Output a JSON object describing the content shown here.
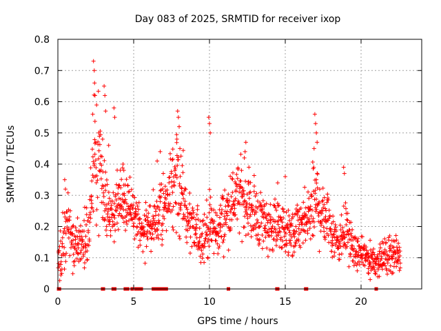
{
  "chart_data": {
    "type": "scatter",
    "title": "Day 083 of 2025, SRMTID for receiver ixop",
    "xlabel": "GPS time / hours",
    "ylabel": "SRMTID / TECUs",
    "xlim": [
      0,
      24
    ],
    "ylim": [
      0,
      0.8
    ],
    "grid": true,
    "marker": "+",
    "color": "#ff0000",
    "x_ticks": [
      0,
      5,
      10,
      15,
      20
    ],
    "x_tick_labels": [
      "0",
      "5",
      "10",
      "15",
      "20"
    ],
    "y_ticks": [
      0,
      0.1,
      0.2,
      0.3,
      0.4,
      0.5,
      0.6,
      0.7,
      0.8
    ],
    "y_tick_labels": [
      "0",
      "0.1",
      "0.2",
      "0.3",
      "0.4",
      "0.5",
      "0.6",
      "0.7",
      "0.8"
    ],
    "envelope": {
      "x": [
        0.0,
        0.3,
        0.6,
        1.0,
        1.5,
        2.0,
        2.3,
        2.5,
        2.8,
        3.1,
        3.5,
        4.0,
        4.5,
        5.0,
        5.5,
        6.0,
        6.5,
        7.0,
        7.5,
        8.0,
        8.5,
        9.0,
        9.5,
        10.0,
        10.5,
        11.0,
        11.5,
        12.0,
        12.5,
        13.0,
        13.5,
        14.0,
        14.5,
        15.0,
        15.5,
        16.0,
        16.5,
        17.0,
        17.5,
        18.0,
        18.5,
        19.0,
        19.5,
        20.0,
        20.5,
        21.0,
        21.5,
        22.0,
        22.6
      ],
      "y_mean": [
        0.08,
        0.12,
        0.22,
        0.13,
        0.15,
        0.18,
        0.35,
        0.45,
        0.38,
        0.28,
        0.22,
        0.26,
        0.28,
        0.24,
        0.18,
        0.2,
        0.22,
        0.27,
        0.32,
        0.35,
        0.22,
        0.18,
        0.17,
        0.2,
        0.18,
        0.23,
        0.28,
        0.3,
        0.27,
        0.24,
        0.22,
        0.2,
        0.21,
        0.18,
        0.17,
        0.2,
        0.22,
        0.28,
        0.25,
        0.2,
        0.15,
        0.2,
        0.12,
        0.11,
        0.1,
        0.09,
        0.1,
        0.12,
        0.1
      ],
      "y_spread": [
        0.04,
        0.06,
        0.08,
        0.05,
        0.05,
        0.06,
        0.12,
        0.13,
        0.11,
        0.07,
        0.06,
        0.06,
        0.06,
        0.05,
        0.05,
        0.05,
        0.06,
        0.07,
        0.08,
        0.1,
        0.06,
        0.05,
        0.05,
        0.06,
        0.05,
        0.06,
        0.06,
        0.07,
        0.06,
        0.06,
        0.06,
        0.05,
        0.05,
        0.05,
        0.05,
        0.05,
        0.06,
        0.09,
        0.07,
        0.06,
        0.04,
        0.06,
        0.03,
        0.03,
        0.03,
        0.03,
        0.03,
        0.04,
        0.03
      ]
    },
    "peaks": [
      {
        "x": 2.35,
        "y": 0.73
      },
      {
        "x": 2.4,
        "y": 0.7
      },
      {
        "x": 2.42,
        "y": 0.66
      },
      {
        "x": 2.45,
        "y": 0.62
      },
      {
        "x": 3.05,
        "y": 0.65
      },
      {
        "x": 3.1,
        "y": 0.62
      },
      {
        "x": 3.15,
        "y": 0.57
      },
      {
        "x": 3.7,
        "y": 0.58
      },
      {
        "x": 3.75,
        "y": 0.55
      },
      {
        "x": 2.3,
        "y": 0.56
      },
      {
        "x": 2.7,
        "y": 0.5
      },
      {
        "x": 2.95,
        "y": 0.48
      },
      {
        "x": 4.3,
        "y": 0.4
      },
      {
        "x": 4.35,
        "y": 0.38
      },
      {
        "x": 7.9,
        "y": 0.57
      },
      {
        "x": 7.95,
        "y": 0.55
      },
      {
        "x": 8.0,
        "y": 0.52
      },
      {
        "x": 7.85,
        "y": 0.48
      },
      {
        "x": 9.95,
        "y": 0.55
      },
      {
        "x": 10.0,
        "y": 0.53
      },
      {
        "x": 10.05,
        "y": 0.5
      },
      {
        "x": 12.4,
        "y": 0.47
      },
      {
        "x": 12.35,
        "y": 0.44
      },
      {
        "x": 12.3,
        "y": 0.42
      },
      {
        "x": 16.95,
        "y": 0.56
      },
      {
        "x": 17.0,
        "y": 0.53
      },
      {
        "x": 17.05,
        "y": 0.5
      },
      {
        "x": 17.1,
        "y": 0.47
      },
      {
        "x": 16.9,
        "y": 0.45
      },
      {
        "x": 18.85,
        "y": 0.39
      },
      {
        "x": 18.9,
        "y": 0.37
      },
      {
        "x": 8.05,
        "y": 0.45
      },
      {
        "x": 2.5,
        "y": 0.47
      },
      {
        "x": 0.45,
        "y": 0.35
      },
      {
        "x": 0.5,
        "y": 0.32
      },
      {
        "x": 3.35,
        "y": 0.46
      },
      {
        "x": 12.6,
        "y": 0.39
      },
      {
        "x": 15.0,
        "y": 0.36
      },
      {
        "x": 14.5,
        "y": 0.34
      },
      {
        "x": 6.75,
        "y": 0.44
      },
      {
        "x": 6.55,
        "y": 0.41
      },
      {
        "x": 20.6,
        "y": 0.03
      },
      {
        "x": 20.5,
        "y": 0.05
      },
      {
        "x": 21.2,
        "y": 0.04
      }
    ],
    "zero_points_x": [
      0.05,
      0.1,
      2.95,
      3.0,
      3.65,
      3.75,
      4.45,
      4.6,
      4.9,
      5.15,
      5.3,
      5.5,
      6.3,
      6.45,
      6.6,
      6.8,
      6.9,
      7.05,
      7.15,
      11.25,
      14.45,
      14.5,
      16.35,
      16.4,
      21.0
    ]
  }
}
